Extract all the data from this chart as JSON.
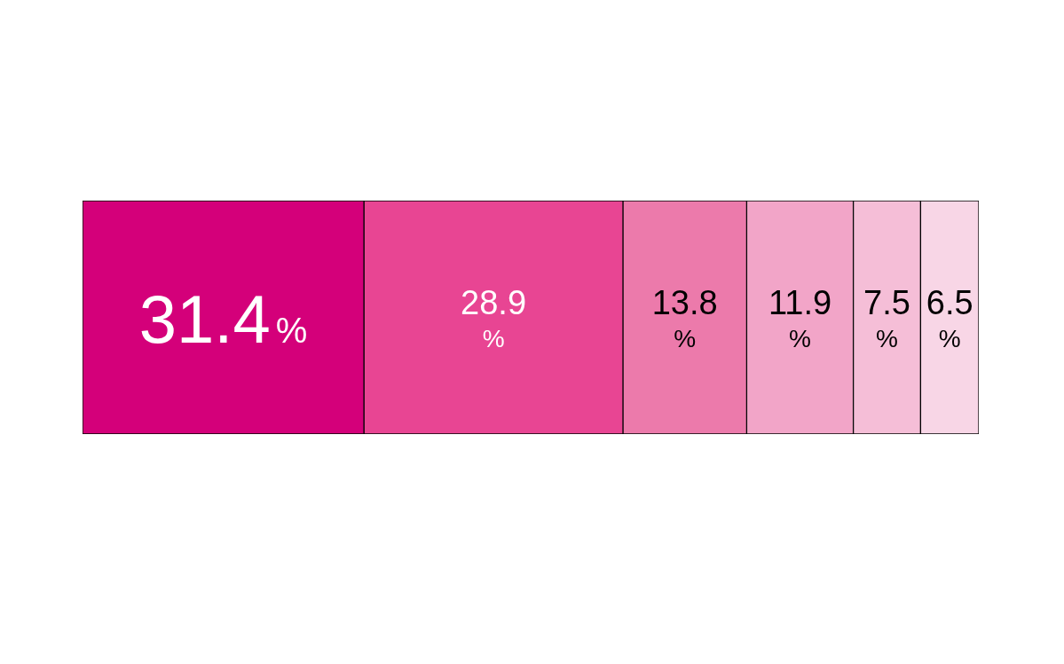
{
  "chart_data": {
    "type": "bar",
    "orientation": "horizontal",
    "stacked": true,
    "categories": [
      null
    ],
    "xlim": [
      0,
      100
    ],
    "tick_labels": false,
    "series": [
      {
        "color": "#d4007a",
        "values": [
          31.4
        ],
        "value_labels": [
          "31.4%"
        ]
      },
      {
        "color": "#e84593",
        "values": [
          28.9
        ],
        "value_labels": [
          "28.9%"
        ]
      },
      {
        "color": "#ec7aab",
        "values": [
          13.8
        ],
        "value_labels": [
          "13.8%"
        ]
      },
      {
        "color": "#f2a5c8",
        "values": [
          11.9
        ],
        "value_labels": [
          "11.9%"
        ]
      },
      {
        "color": "#f5bed7",
        "values": [
          7.5
        ],
        "value_labels": [
          "7.5%"
        ]
      },
      {
        "color": "#f8d6e6",
        "values": [
          6.5
        ],
        "value_labels": [
          "6.5%"
        ]
      }
    ]
  }
}
